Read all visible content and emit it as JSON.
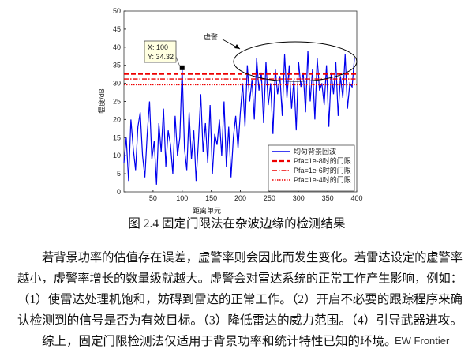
{
  "chart_data": {
    "type": "line",
    "xlabel": "距离单元",
    "ylabel": "幅度/dB",
    "xlim": [
      0,
      400
    ],
    "ylim": [
      0,
      50
    ],
    "xticks": [
      50,
      100,
      150,
      200,
      250,
      300,
      350,
      400
    ],
    "yticks": [
      0,
      5,
      10,
      15,
      20,
      25,
      30,
      35,
      40,
      45,
      50
    ],
    "x": [
      0,
      4,
      8,
      12,
      16,
      20,
      24,
      28,
      32,
      36,
      40,
      44,
      48,
      52,
      56,
      60,
      64,
      68,
      72,
      76,
      80,
      84,
      88,
      92,
      96,
      100,
      104,
      108,
      112,
      116,
      120,
      124,
      128,
      132,
      136,
      140,
      144,
      148,
      152,
      156,
      160,
      164,
      168,
      172,
      176,
      180,
      184,
      188,
      192,
      196,
      200,
      204,
      208,
      212,
      216,
      220,
      224,
      228,
      232,
      236,
      240,
      244,
      248,
      252,
      256,
      260,
      264,
      268,
      272,
      276,
      280,
      284,
      288,
      292,
      296,
      300,
      304,
      308,
      312,
      316,
      320,
      324,
      328,
      332,
      336,
      340,
      344,
      348,
      352,
      356,
      360,
      364,
      368,
      372,
      376,
      380,
      384,
      388,
      392,
      396
    ],
    "series": [
      {
        "name": "均匀背景回波",
        "color": "#0000ee",
        "values": [
          8,
          15,
          3,
          20,
          12,
          6,
          18,
          22,
          10,
          4,
          16,
          25,
          9,
          14,
          2,
          19,
          11,
          23,
          7,
          17,
          13,
          5,
          21,
          10,
          15,
          34.32,
          12,
          6,
          22,
          9,
          17,
          3,
          14,
          27,
          11,
          19,
          8,
          24,
          5,
          16,
          13,
          20,
          10,
          25,
          7,
          18,
          4,
          15,
          21,
          12,
          22,
          30,
          18,
          35,
          25,
          31,
          20,
          37,
          28,
          33,
          19,
          36,
          24,
          30,
          16,
          34,
          27,
          32,
          21,
          38,
          26,
          35,
          23,
          31,
          17,
          36,
          29,
          33,
          22,
          39,
          25,
          34,
          20,
          37,
          28,
          30,
          24,
          35,
          18,
          33,
          27,
          36,
          21,
          32,
          26,
          38,
          23,
          30,
          29,
          37
        ]
      }
    ],
    "hlines": [
      {
        "name": "Pfa=1e-8时的门限",
        "color": "#ee0000",
        "value": 32.6,
        "style": "dashed"
      },
      {
        "name": "Pfa=1e-6时的门限",
        "color": "#ee0000",
        "value": 31.2,
        "style": "dashdot"
      },
      {
        "name": "Pfa=1e-4时的门限",
        "color": "#ee0000",
        "value": 29.6,
        "style": "dotted"
      }
    ],
    "datatip": {
      "x_label": "X: 100",
      "y_label": "Y: 34.32",
      "x": 100,
      "y": 34.32
    },
    "annotation": "虚警"
  },
  "caption": "图 2.4  固定门限法在杂波边缘的检测结果",
  "paragraphs": [
    [
      "若背景功率的估值存在误差，虚警率则会因此而发生变化。若雷达设定的虚警率",
      "越小，虚警率增长的数量级就越大。虚警会对雷达系统的正常工作产生影响，例如：",
      "（1）使雷达处理机饱和，妨碍到雷达的正常工作。（2）开启不必要的跟踪程序来确",
      "认检测到的信号是否为有效目标。（3）降低雷达的威力范围。（4）引导武器进攻。"
    ],
    [
      "综上，固定门限检测法仅适用于背景功率和统计特性已知的环境。"
    ]
  ],
  "watermark": "EW Frontier"
}
